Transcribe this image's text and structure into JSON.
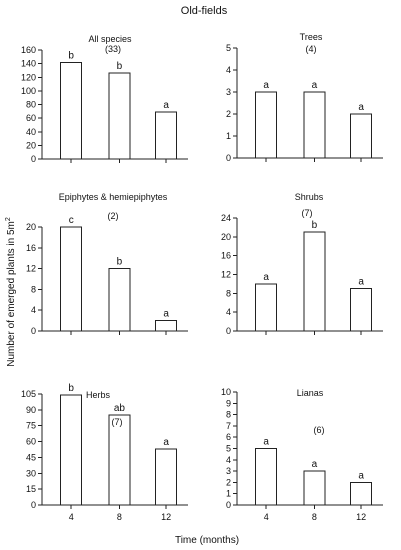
{
  "figure": {
    "title": "Old-fields",
    "ylabel": "Number of emerged plants in 5m",
    "ylabel_sup": "2",
    "xlabel": "Time (months)"
  },
  "chart_data": [
    {
      "type": "bar",
      "title": "All species",
      "count_label": "(33)",
      "categories": [
        "4",
        "8",
        "12"
      ],
      "values": [
        142,
        126,
        69
      ],
      "significance": [
        "b",
        "b",
        "a"
      ],
      "ylim": [
        0,
        160
      ],
      "yticks": [
        0,
        20,
        40,
        60,
        80,
        100,
        120,
        140,
        160
      ],
      "show_x_ticklabels": false
    },
    {
      "type": "bar",
      "title": "Trees",
      "count_label": "(4)",
      "categories": [
        "4",
        "8",
        "12"
      ],
      "values": [
        3,
        3,
        2
      ],
      "significance": [
        "a",
        "a",
        "a"
      ],
      "ylim": [
        0,
        5
      ],
      "yticks": [
        0,
        1,
        2,
        3,
        4,
        5
      ],
      "show_x_ticklabels": false
    },
    {
      "type": "bar",
      "title": "Epiphytes & hemiepiphytes",
      "count_label": "(2)",
      "categories": [
        "4",
        "8",
        "12"
      ],
      "values": [
        20,
        12,
        2
      ],
      "significance": [
        "c",
        "b",
        "a"
      ],
      "ylim": [
        0,
        20
      ],
      "yticks": [
        0,
        4,
        8,
        12,
        16,
        20
      ],
      "show_x_ticklabels": false
    },
    {
      "type": "bar",
      "title": "Shrubs",
      "count_label": "(7)",
      "categories": [
        "4",
        "8",
        "12"
      ],
      "values": [
        10,
        21,
        9
      ],
      "significance": [
        "a",
        "b",
        "a"
      ],
      "ylim": [
        0,
        24
      ],
      "yticks": [
        0,
        4,
        8,
        12,
        16,
        20,
        24
      ],
      "show_x_ticklabels": false
    },
    {
      "type": "bar",
      "title": "Herbs",
      "count_label": "(7)",
      "categories": [
        "4",
        "8",
        "12"
      ],
      "values": [
        104,
        85,
        53
      ],
      "significance": [
        "b",
        "ab",
        "a"
      ],
      "ylim": [
        0,
        105
      ],
      "yticks": [
        0,
        15,
        30,
        45,
        60,
        75,
        90,
        105
      ],
      "show_x_ticklabels": true
    },
    {
      "type": "bar",
      "title": "Lianas",
      "count_label": "(6)",
      "categories": [
        "4",
        "8",
        "12"
      ],
      "values": [
        5,
        3,
        2
      ],
      "significance": [
        "a",
        "a",
        "a"
      ],
      "ylim": [
        0,
        10
      ],
      "yticks": [
        0,
        1,
        2,
        3,
        4,
        5,
        6,
        7,
        8,
        9,
        10
      ],
      "show_x_ticklabels": true
    }
  ]
}
